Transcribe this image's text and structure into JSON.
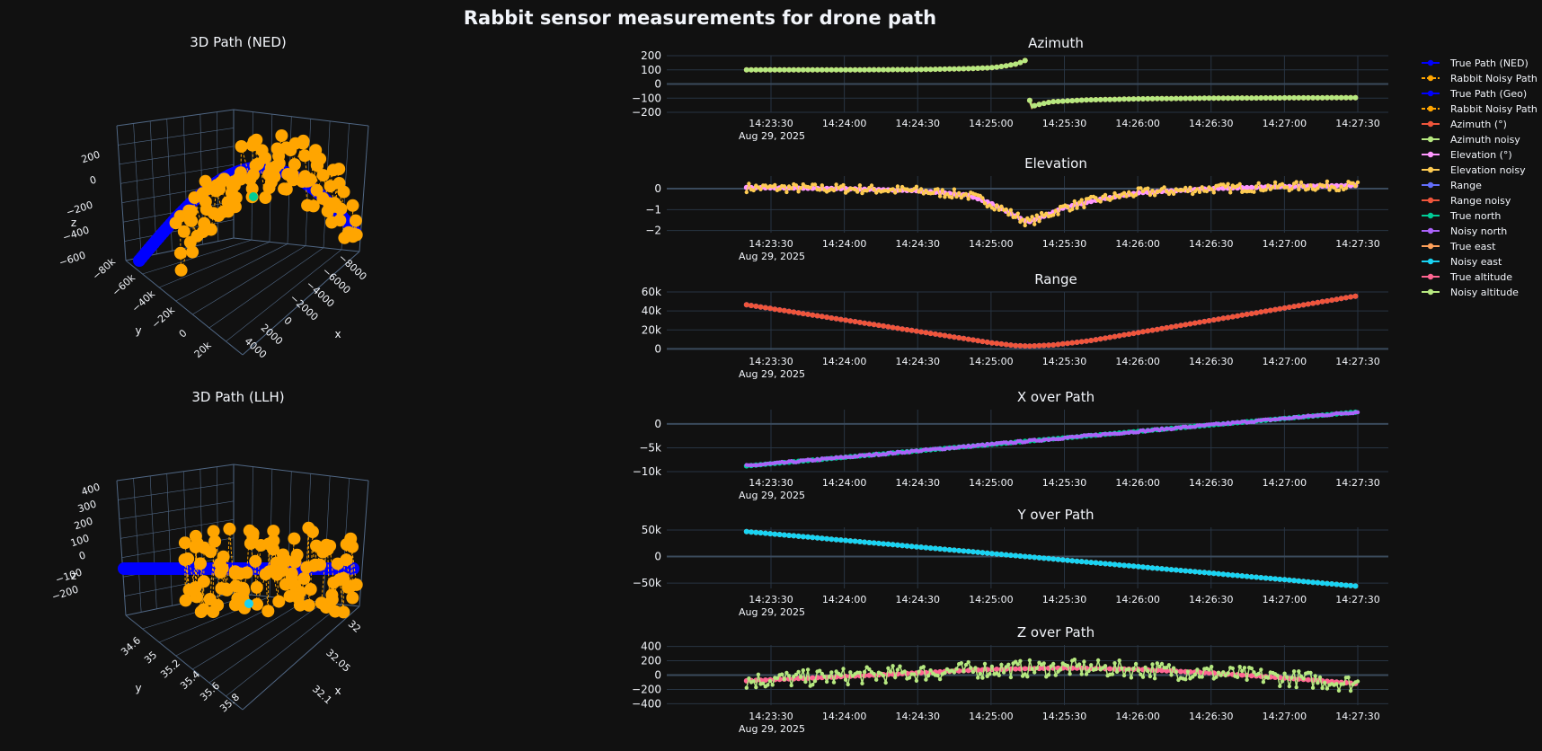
{
  "page": {
    "title": "Rabbit sensor measurements for drone path",
    "date_label": "Aug 29, 2025"
  },
  "colors": {
    "background": "#111111",
    "grid": "#283442",
    "zeroline": "#3a4a5c",
    "true_path": "#0000ff",
    "noisy_path": "#ffa500",
    "origin_ned": "#00cc96",
    "origin_llh": "#19d3f3",
    "azimuth": "#ef553b",
    "azimuth_noisy": "#b6e880",
    "elevation": "#ff97ff",
    "elevation_noisy": "#fecb52",
    "range": "#636efa",
    "range_noisy": "#ef553b",
    "true_north": "#00cc96",
    "noisy_north": "#ab63fa",
    "true_east": "#ffa15a",
    "noisy_east": "#19d3f3",
    "true_altitude": "#ff6692",
    "noisy_altitude": "#b6e880"
  },
  "legend": {
    "placement": "right",
    "items": [
      {
        "label": "True Path (NED)",
        "color": "#0000ff",
        "dashed": false
      },
      {
        "label": "Rabbit Noisy Path",
        "color": "#ffa500",
        "dashed": true
      },
      {
        "label": "True Path (Geo)",
        "color": "#0000ff",
        "dashed": false
      },
      {
        "label": "Rabbit Noisy Path",
        "color": "#ffa500",
        "dashed": true
      },
      {
        "label": "Azimuth (°)",
        "color": "#ef553b",
        "dashed": false
      },
      {
        "label": "Azimuth noisy",
        "color": "#b6e880",
        "dashed": false
      },
      {
        "label": "Elevation (°)",
        "color": "#ff97ff",
        "dashed": false
      },
      {
        "label": "Elevation noisy",
        "color": "#fecb52",
        "dashed": false
      },
      {
        "label": "Range",
        "color": "#636efa",
        "dashed": false
      },
      {
        "label": "Range noisy",
        "color": "#ef553b",
        "dashed": false
      },
      {
        "label": "True north",
        "color": "#00cc96",
        "dashed": false
      },
      {
        "label": "Noisy north",
        "color": "#ab63fa",
        "dashed": false
      },
      {
        "label": "True east",
        "color": "#ffa15a",
        "dashed": false
      },
      {
        "label": "Noisy east",
        "color": "#19d3f3",
        "dashed": false
      },
      {
        "label": "True altitude",
        "color": "#ff6692",
        "dashed": false
      },
      {
        "label": "Noisy altitude",
        "color": "#b6e880",
        "dashed": false
      }
    ]
  },
  "scenes": [
    {
      "id": "ned",
      "title": "3D Path (NED)",
      "z_label": "z",
      "y_label": "y",
      "x_label": "x",
      "z_ticks": [
        "200",
        "0",
        "−200",
        "−400",
        "−600"
      ],
      "y_ticks": [
        "−80k",
        "−60k",
        "−40k",
        "−20k",
        "0",
        "20k"
      ],
      "x_ticks": [
        "−8000",
        "−6000",
        "−4000",
        "−2000",
        "0",
        "2000",
        "4000"
      ]
    },
    {
      "id": "llh",
      "title": "3D Path (LLH)",
      "z_label": "z",
      "y_label": "y",
      "x_label": "x",
      "z_ticks": [
        "400",
        "300",
        "200",
        "100",
        "0",
        "−100",
        "−200"
      ],
      "y_ticks": [
        "34.6",
        "35",
        "35.2",
        "35.4",
        "35.6",
        "35.8"
      ],
      "x_ticks": [
        "32",
        "32.05",
        "32.1"
      ]
    }
  ],
  "chart_data": [
    {
      "id": "azimuth",
      "type": "line",
      "title": "Azimuth",
      "x_type": "time",
      "x_start": "14:23:20",
      "x_end": "14:27:30",
      "x_ticks": [
        "14:23:30",
        "14:24:00",
        "14:24:30",
        "14:25:00",
        "14:25:30",
        "14:26:00",
        "14:26:30",
        "14:27:00",
        "14:27:30"
      ],
      "ylim": [
        -200,
        200
      ],
      "y_ticks": [
        200,
        100,
        0,
        -100,
        -200
      ],
      "y_tick_labels": [
        "200",
        "100",
        "0",
        "−100",
        "−200"
      ],
      "series": [
        {
          "name": "Azimuth (°)",
          "color": "#ef553b",
          "points": [
            [
              "14:23:20",
              100
            ],
            [
              "14:24:00",
              100
            ],
            [
              "14:24:30",
              102
            ],
            [
              "14:24:50",
              108
            ],
            [
              "14:25:00",
              115
            ],
            [
              "14:25:05",
              125
            ],
            [
              "14:25:10",
              140
            ],
            [
              "14:25:13",
              158
            ],
            [
              "14:25:15",
              175
            ],
            [
              "14:25:16",
              -175
            ],
            [
              "14:25:18",
              -150
            ],
            [
              "14:25:25",
              -125
            ],
            [
              "14:25:40",
              -112
            ],
            [
              "14:26:00",
              -105
            ],
            [
              "14:26:30",
              -100
            ],
            [
              "14:27:00",
              -98
            ],
            [
              "14:27:30",
              -97
            ]
          ]
        },
        {
          "name": "Azimuth noisy",
          "color": "#b6e880",
          "points": [
            [
              "14:23:20",
              100
            ],
            [
              "14:24:00",
              100
            ],
            [
              "14:24:30",
              102
            ],
            [
              "14:24:50",
              108
            ],
            [
              "14:25:00",
              115
            ],
            [
              "14:25:05",
              125
            ],
            [
              "14:25:10",
              140
            ],
            [
              "14:25:13",
              158
            ],
            [
              "14:25:15",
              175
            ],
            [
              "14:25:16",
              -175
            ],
            [
              "14:25:18",
              -150
            ],
            [
              "14:25:25",
              -125
            ],
            [
              "14:25:40",
              -112
            ],
            [
              "14:26:00",
              -105
            ],
            [
              "14:26:30",
              -100
            ],
            [
              "14:27:00",
              -98
            ],
            [
              "14:27:30",
              -97
            ]
          ]
        }
      ]
    },
    {
      "id": "elevation",
      "type": "line",
      "title": "Elevation",
      "x_type": "time",
      "x_start": "14:23:20",
      "x_end": "14:27:30",
      "x_ticks": [
        "14:23:30",
        "14:24:00",
        "14:24:30",
        "14:25:00",
        "14:25:30",
        "14:26:00",
        "14:26:30",
        "14:27:00",
        "14:27:30"
      ],
      "ylim": [
        -2.1,
        0.6
      ],
      "y_ticks": [
        0,
        -1,
        -2
      ],
      "y_tick_labels": [
        "0",
        "−1",
        "−2"
      ],
      "series": [
        {
          "name": "Elevation (°)",
          "color": "#ff97ff",
          "points": [
            [
              "14:23:20",
              0.05
            ],
            [
              "14:24:00",
              0.0
            ],
            [
              "14:24:30",
              -0.1
            ],
            [
              "14:24:50",
              -0.3
            ],
            [
              "14:25:00",
              -0.7
            ],
            [
              "14:25:10",
              -1.3
            ],
            [
              "14:25:15",
              -1.6
            ],
            [
              "14:25:20",
              -1.4
            ],
            [
              "14:25:30",
              -0.9
            ],
            [
              "14:25:45",
              -0.5
            ],
            [
              "14:26:00",
              -0.2
            ],
            [
              "14:26:30",
              0.0
            ],
            [
              "14:27:00",
              0.1
            ],
            [
              "14:27:30",
              0.15
            ]
          ]
        },
        {
          "name": "Elevation noisy",
          "color": "#fecb52",
          "points": [
            [
              "14:23:20",
              0.05
            ],
            [
              "14:24:00",
              0.0
            ],
            [
              "14:24:30",
              -0.1
            ],
            [
              "14:24:50",
              -0.3
            ],
            [
              "14:25:00",
              -0.7
            ],
            [
              "14:25:10",
              -1.3
            ],
            [
              "14:25:15",
              -1.6
            ],
            [
              "14:25:20",
              -1.4
            ],
            [
              "14:25:30",
              -0.9
            ],
            [
              "14:25:45",
              -0.5
            ],
            [
              "14:26:00",
              -0.2
            ],
            [
              "14:26:30",
              0.0
            ],
            [
              "14:27:00",
              0.1
            ],
            [
              "14:27:30",
              0.15
            ]
          ],
          "noise": 0.22
        }
      ]
    },
    {
      "id": "range",
      "type": "line",
      "title": "Range",
      "x_type": "time",
      "x_start": "14:23:20",
      "x_end": "14:27:30",
      "x_ticks": [
        "14:23:30",
        "14:24:00",
        "14:24:30",
        "14:25:00",
        "14:25:30",
        "14:26:00",
        "14:26:30",
        "14:27:00",
        "14:27:30"
      ],
      "ylim": [
        -1500,
        60000
      ],
      "y_ticks": [
        60000,
        40000,
        20000,
        0
      ],
      "y_tick_labels": [
        "60k",
        "40k",
        "20k",
        "0"
      ],
      "series": [
        {
          "name": "Range",
          "color": "#636efa",
          "points": [
            [
              "14:23:20",
              46500
            ],
            [
              "14:25:00",
              6500
            ],
            [
              "14:25:10",
              3500
            ],
            [
              "14:25:15",
              3000
            ],
            [
              "14:25:25",
              4000
            ],
            [
              "14:25:40",
              8500
            ],
            [
              "14:27:30",
              56000
            ]
          ]
        },
        {
          "name": "Range noisy",
          "color": "#ef553b",
          "points": [
            [
              "14:23:20",
              46500
            ],
            [
              "14:25:00",
              6500
            ],
            [
              "14:25:10",
              3500
            ],
            [
              "14:25:15",
              3000
            ],
            [
              "14:25:25",
              4000
            ],
            [
              "14:25:40",
              8500
            ],
            [
              "14:27:30",
              56000
            ]
          ]
        }
      ]
    },
    {
      "id": "x_over_path",
      "type": "line",
      "title": "X over Path",
      "x_type": "time",
      "x_start": "14:23:20",
      "x_end": "14:27:30",
      "x_ticks": [
        "14:23:30",
        "14:24:00",
        "14:24:30",
        "14:25:00",
        "14:25:30",
        "14:26:00",
        "14:26:30",
        "14:27:00",
        "14:27:30"
      ],
      "ylim": [
        -10000,
        3000
      ],
      "y_ticks": [
        0,
        -5000,
        -10000
      ],
      "y_tick_labels": [
        "0",
        "−5k",
        "−10k"
      ],
      "series": [
        {
          "name": "True north",
          "color": "#00cc96",
          "points": [
            [
              "14:23:20",
              -8800
            ],
            [
              "14:27:30",
              2500
            ]
          ]
        },
        {
          "name": "Noisy north",
          "color": "#ab63fa",
          "points": [
            [
              "14:23:20",
              -8800
            ],
            [
              "14:27:30",
              2500
            ]
          ],
          "noise": 200
        }
      ]
    },
    {
      "id": "y_over_path",
      "type": "line",
      "title": "Y over Path",
      "x_type": "time",
      "x_start": "14:23:20",
      "x_end": "14:27:30",
      "x_ticks": [
        "14:23:30",
        "14:24:00",
        "14:24:30",
        "14:25:00",
        "14:25:30",
        "14:26:00",
        "14:26:30",
        "14:27:00",
        "14:27:30"
      ],
      "ylim": [
        -60000,
        55000
      ],
      "y_ticks": [
        50000,
        0,
        -50000
      ],
      "y_tick_labels": [
        "50k",
        "0",
        "−50k"
      ],
      "series": [
        {
          "name": "True east",
          "color": "#ffa15a",
          "points": [
            [
              "14:23:20",
              47000
            ],
            [
              "14:27:30",
              -56000
            ]
          ]
        },
        {
          "name": "Noisy east",
          "color": "#19d3f3",
          "points": [
            [
              "14:23:20",
              47000
            ],
            [
              "14:27:30",
              -56000
            ]
          ]
        }
      ]
    },
    {
      "id": "z_over_path",
      "type": "line",
      "title": "Z over Path",
      "x_type": "time",
      "x_start": "14:23:20",
      "x_end": "14:27:30",
      "x_ticks": [
        "14:23:30",
        "14:24:00",
        "14:24:30",
        "14:25:00",
        "14:25:30",
        "14:26:00",
        "14:26:30",
        "14:27:00",
        "14:27:30"
      ],
      "ylim": [
        -420,
        420
      ],
      "y_ticks": [
        400,
        200,
        0,
        -200,
        -400
      ],
      "y_tick_labels": [
        "400",
        "200",
        "0",
        "−200",
        "−400"
      ],
      "series": [
        {
          "name": "True altitude",
          "color": "#ff6692",
          "points": [
            [
              "14:23:20",
              -80
            ],
            [
              "14:24:00",
              -20
            ],
            [
              "14:24:30",
              30
            ],
            [
              "14:25:00",
              80
            ],
            [
              "14:25:30",
              100
            ],
            [
              "14:26:00",
              80
            ],
            [
              "14:26:30",
              30
            ],
            [
              "14:27:00",
              -40
            ],
            [
              "14:27:30",
              -120
            ]
          ]
        },
        {
          "name": "Noisy altitude",
          "color": "#b6e880",
          "points": [
            [
              "14:23:20",
              -80
            ],
            [
              "14:24:00",
              -20
            ],
            [
              "14:24:30",
              30
            ],
            [
              "14:25:00",
              80
            ],
            [
              "14:25:30",
              100
            ],
            [
              "14:26:00",
              80
            ],
            [
              "14:26:30",
              30
            ],
            [
              "14:27:00",
              -40
            ],
            [
              "14:27:30",
              -120
            ]
          ],
          "noise": 120
        }
      ]
    }
  ]
}
